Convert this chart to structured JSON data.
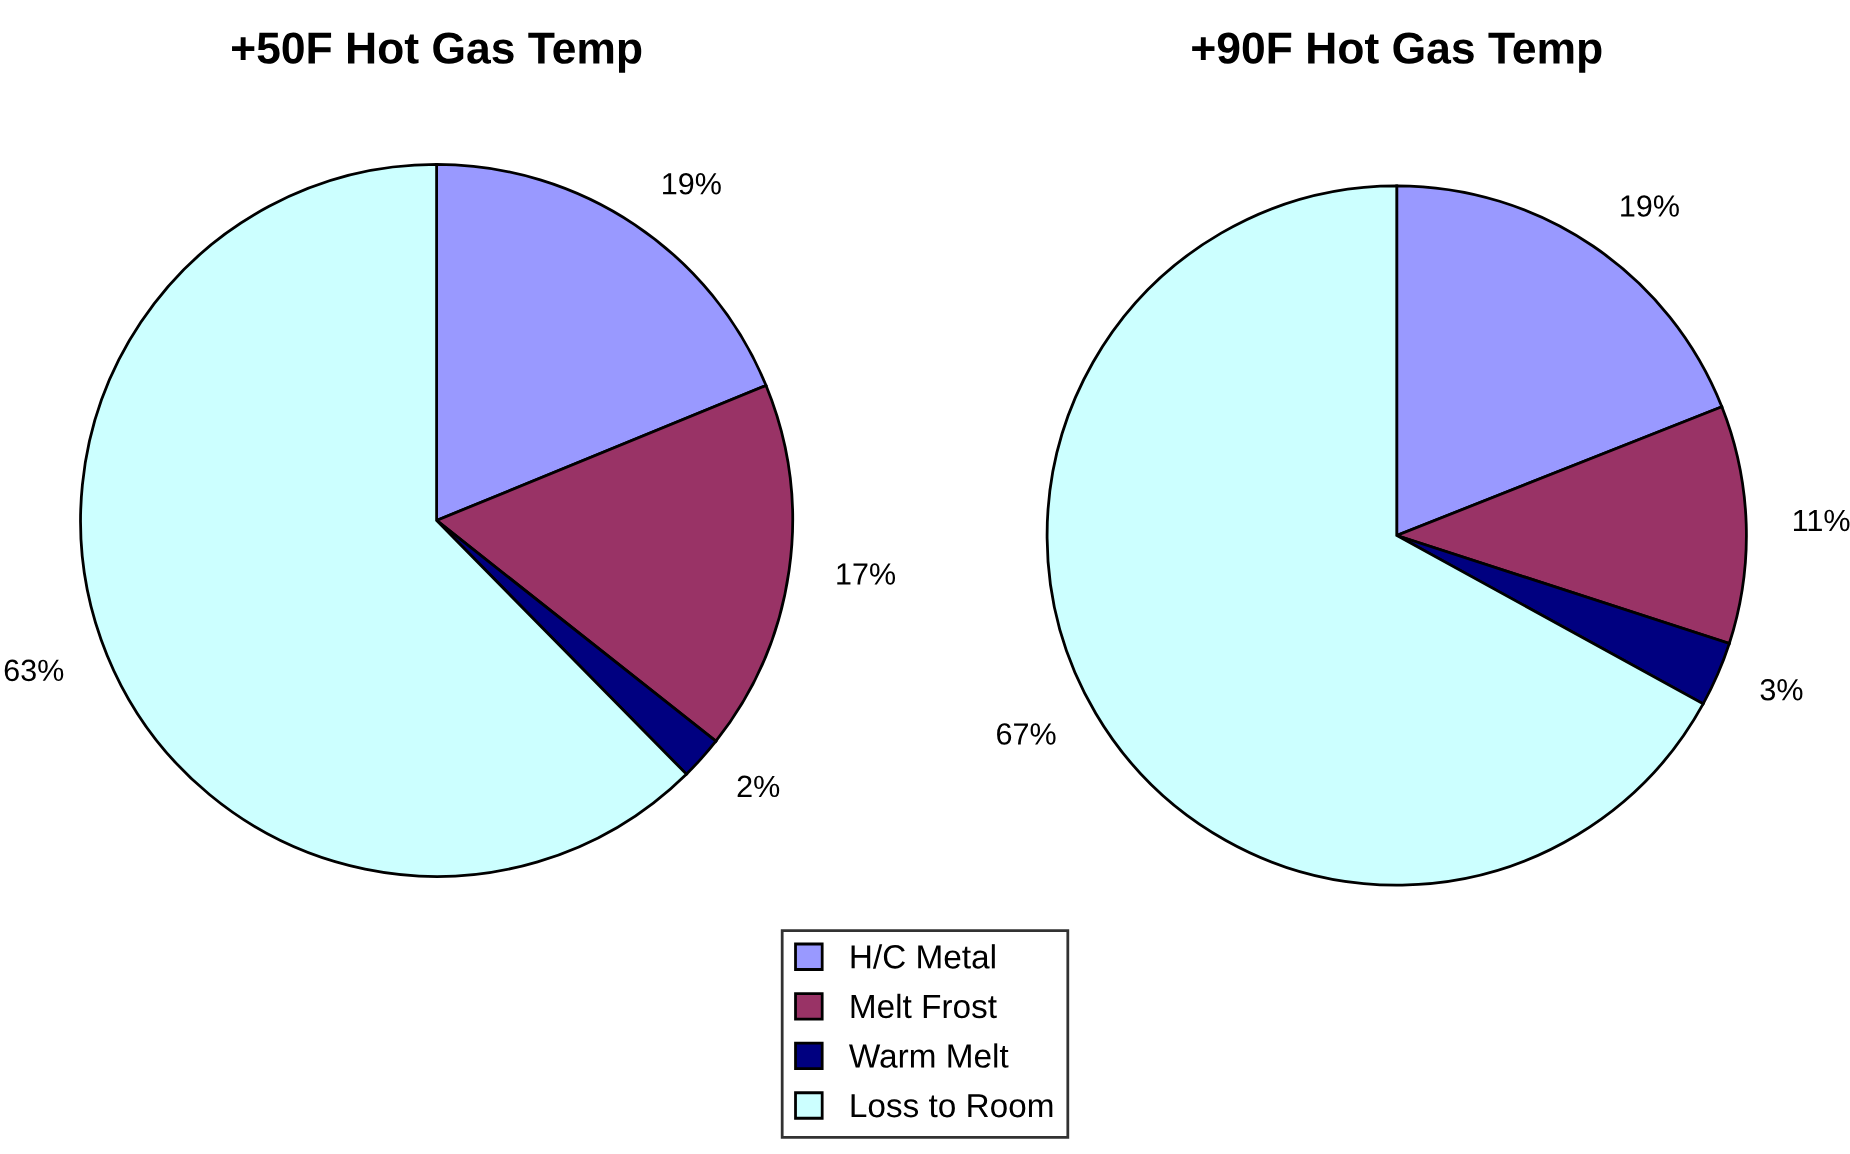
{
  "chart_data": [
    {
      "type": "pie",
      "title": "+50F Hot Gas Temp",
      "categories": [
        "H/C Metal",
        "Melt Frost",
        "Warm Melt",
        "Loss to Room"
      ],
      "values": [
        19,
        17,
        2,
        63
      ],
      "value_labels": [
        "19%",
        "17%",
        "2%",
        "63%"
      ],
      "colors": [
        "#9999ff",
        "#993366",
        "#000080",
        "#ccffff"
      ],
      "legend": "bottom"
    },
    {
      "type": "pie",
      "title": "+90F Hot Gas Temp",
      "categories": [
        null,
        null,
        null,
        null
      ],
      "values": [
        19,
        11,
        3,
        67
      ],
      "value_labels": [
        "19%",
        "11%",
        "3%",
        "67%"
      ],
      "colors": [
        "#9999ff",
        "#993366",
        "#000080",
        "#ccffff"
      ]
    }
  ]
}
